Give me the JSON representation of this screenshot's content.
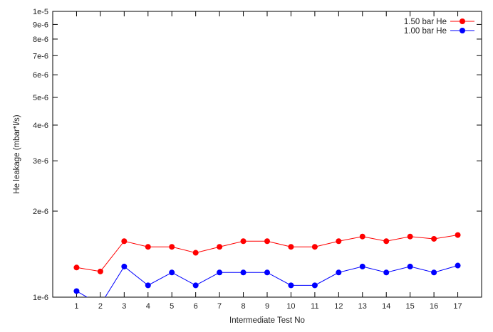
{
  "chart_data": {
    "type": "line",
    "title": "",
    "xlabel": "Intermediate Test No",
    "ylabel": "He leakage (mbar*l/s)",
    "yscale": "log",
    "ylim": [
      1e-06,
      1e-05
    ],
    "xlim": [
      0,
      18
    ],
    "grid": false,
    "legend_position": "top-right",
    "categories": [
      "1",
      "2",
      "3",
      "4",
      "5",
      "6",
      "7",
      "8",
      "9",
      "10",
      "11",
      "12",
      "13",
      "14",
      "15",
      "16",
      "17"
    ],
    "y_ticks": [
      {
        "value": 1e-06,
        "label": "1e-6"
      },
      {
        "value": 2e-06,
        "label": "2e-6"
      },
      {
        "value": 3e-06,
        "label": "3e-6"
      },
      {
        "value": 4e-06,
        "label": "4e-6"
      },
      {
        "value": 5e-06,
        "label": "5e-6"
      },
      {
        "value": 6e-06,
        "label": "6e-6"
      },
      {
        "value": 7e-06,
        "label": "7e-6"
      },
      {
        "value": 8e-06,
        "label": "8e-6"
      },
      {
        "value": 9e-06,
        "label": "9e-6"
      },
      {
        "value": 1e-05,
        "label": "1e-5"
      }
    ],
    "series": [
      {
        "name": "1.50 bar He",
        "color": "#ff0000",
        "x": [
          1,
          2,
          3,
          4,
          5,
          6,
          7,
          8,
          9,
          10,
          11,
          12,
          13,
          14,
          15,
          16,
          17
        ],
        "values": [
          1.27e-06,
          1.23e-06,
          1.57e-06,
          1.5e-06,
          1.5e-06,
          1.43e-06,
          1.5e-06,
          1.57e-06,
          1.57e-06,
          1.5e-06,
          1.5e-06,
          1.57e-06,
          1.63e-06,
          1.57e-06,
          1.63e-06,
          1.6e-06,
          1.65e-06
        ]
      },
      {
        "name": "1.00 bar He",
        "color": "#0000ff",
        "x": [
          1,
          2,
          3,
          4,
          5,
          6,
          7,
          8,
          9,
          10,
          11,
          12,
          13,
          14,
          15,
          16,
          17
        ],
        "values": [
          1.05e-06,
          9.4e-07,
          1.28e-06,
          1.1e-06,
          1.22e-06,
          1.1e-06,
          1.22e-06,
          1.22e-06,
          1.22e-06,
          1.1e-06,
          1.1e-06,
          1.22e-06,
          1.28e-06,
          1.22e-06,
          1.28e-06,
          1.22e-06,
          1.29e-06
        ]
      }
    ]
  }
}
